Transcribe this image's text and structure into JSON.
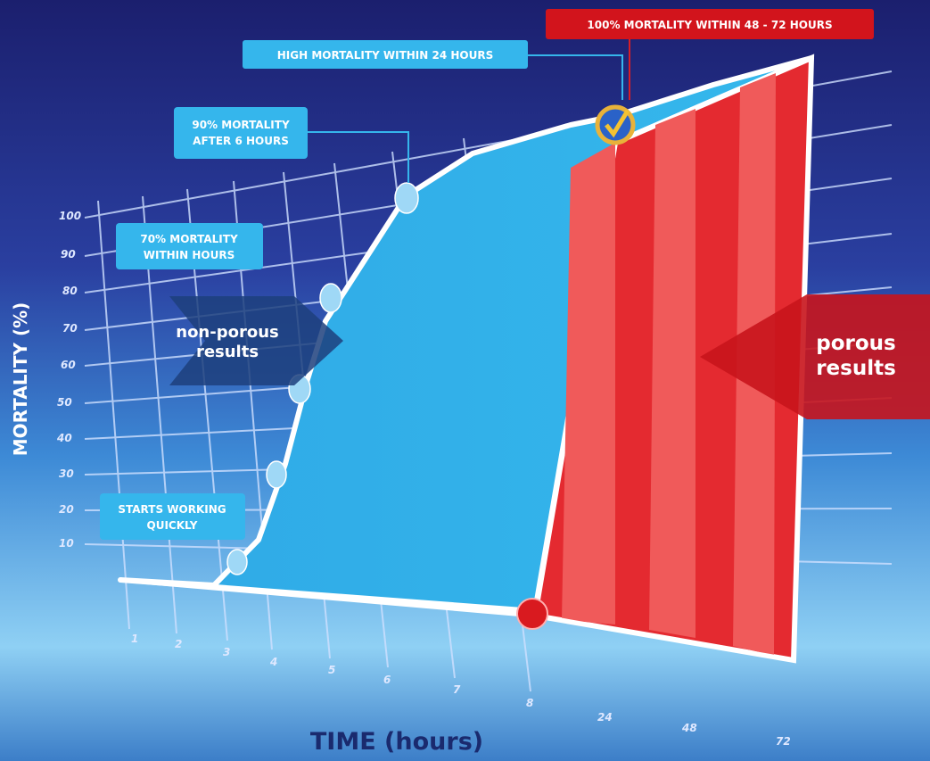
{
  "y_axis": {
    "title": "MORTALITY (%)",
    "ticks": [
      100,
      90,
      80,
      70,
      60,
      50,
      40,
      30,
      20,
      10
    ]
  },
  "x_axis": {
    "title": "TIME (hours)",
    "ticks": [
      1,
      2,
      3,
      4,
      5,
      6,
      7,
      8,
      24,
      48,
      72
    ]
  },
  "callouts": {
    "porous_max": "100% MORTALITY WITHIN 48 - 72 HOURS",
    "high": "HIGH MORTALITY WITHIN 24 HOURS",
    "ninety": [
      "90% MORTALITY",
      "AFTER 6 HOURS"
    ],
    "seventy": [
      "70% MORTALITY",
      "WITHIN HOURS"
    ],
    "starts": [
      "STARTS WORKING",
      "QUICKLY"
    ]
  },
  "arrows": {
    "non_porous": [
      "non-porous",
      "results"
    ],
    "porous": [
      "porous",
      "results"
    ]
  }
}
